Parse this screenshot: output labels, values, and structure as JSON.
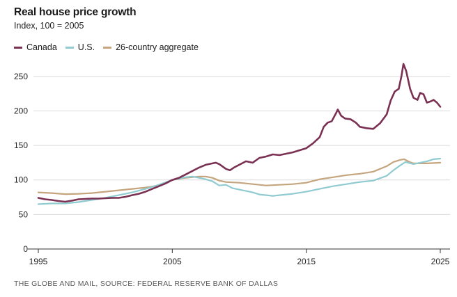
{
  "chart_data": {
    "type": "line",
    "title": "Real house price growth",
    "subtitle": "Index, 100 = 2005",
    "xlabel": "",
    "ylabel": "",
    "xlim": [
      1995,
      2025
    ],
    "ylim": [
      0,
      275
    ],
    "x_ticks": [
      1995,
      2005,
      2015,
      2025
    ],
    "y_ticks": [
      0,
      50,
      100,
      150,
      200,
      250
    ],
    "grid": "horizontal",
    "legend_position": "top-left",
    "series": [
      {
        "name": "Canada",
        "color": "#7a3052",
        "points": [
          [
            1995.0,
            74
          ],
          [
            1995.5,
            72
          ],
          [
            1996.0,
            71
          ],
          [
            1996.5,
            69.5
          ],
          [
            1997.0,
            68.5
          ],
          [
            1997.5,
            70
          ],
          [
            1998.0,
            72
          ],
          [
            1998.5,
            72.5
          ],
          [
            1999.0,
            73
          ],
          [
            1999.5,
            73
          ],
          [
            2000.0,
            73.5
          ],
          [
            2000.5,
            74
          ],
          [
            2001.0,
            74
          ],
          [
            2001.5,
            75.5
          ],
          [
            2002.0,
            78
          ],
          [
            2002.5,
            80
          ],
          [
            2003.0,
            83
          ],
          [
            2003.5,
            87
          ],
          [
            2004.0,
            91
          ],
          [
            2004.5,
            95
          ],
          [
            2005.0,
            100
          ],
          [
            2005.5,
            103
          ],
          [
            2006.0,
            108
          ],
          [
            2006.5,
            113
          ],
          [
            2007.0,
            118
          ],
          [
            2007.5,
            122
          ],
          [
            2008.0,
            124
          ],
          [
            2008.25,
            125
          ],
          [
            2008.5,
            123
          ],
          [
            2009.0,
            116
          ],
          [
            2009.3,
            114
          ],
          [
            2009.6,
            118
          ],
          [
            2010.0,
            122
          ],
          [
            2010.5,
            127
          ],
          [
            2011.0,
            125
          ],
          [
            2011.5,
            132
          ],
          [
            2012.0,
            134
          ],
          [
            2012.5,
            137
          ],
          [
            2013.0,
            136
          ],
          [
            2013.5,
            138
          ],
          [
            2014.0,
            140
          ],
          [
            2014.5,
            143
          ],
          [
            2015.0,
            146
          ],
          [
            2015.5,
            153
          ],
          [
            2016.0,
            162
          ],
          [
            2016.3,
            177
          ],
          [
            2016.6,
            183
          ],
          [
            2016.9,
            185
          ],
          [
            2017.2,
            196
          ],
          [
            2017.35,
            202
          ],
          [
            2017.6,
            193
          ],
          [
            2017.9,
            189
          ],
          [
            2018.3,
            188
          ],
          [
            2018.7,
            183
          ],
          [
            2019.0,
            177
          ],
          [
            2019.5,
            175
          ],
          [
            2020.0,
            174
          ],
          [
            2020.5,
            182
          ],
          [
            2021.0,
            195
          ],
          [
            2021.3,
            215
          ],
          [
            2021.6,
            228
          ],
          [
            2021.9,
            232
          ],
          [
            2022.1,
            250
          ],
          [
            2022.25,
            268
          ],
          [
            2022.45,
            258
          ],
          [
            2022.75,
            232
          ],
          [
            2023.0,
            219
          ],
          [
            2023.3,
            216
          ],
          [
            2023.5,
            226
          ],
          [
            2023.75,
            224
          ],
          [
            2024.0,
            212
          ],
          [
            2024.3,
            214
          ],
          [
            2024.5,
            216
          ],
          [
            2024.75,
            212
          ],
          [
            2025.0,
            206
          ]
        ]
      },
      {
        "name": "U.S.",
        "color": "#8fcbd0",
        "points": [
          [
            1995.0,
            65
          ],
          [
            1996.0,
            66
          ],
          [
            1997.0,
            66
          ],
          [
            1998.0,
            68
          ],
          [
            1999.0,
            71
          ],
          [
            2000.0,
            74
          ],
          [
            2001.0,
            78
          ],
          [
            2002.0,
            82
          ],
          [
            2003.0,
            87
          ],
          [
            2004.0,
            93
          ],
          [
            2005.0,
            100
          ],
          [
            2006.0,
            104
          ],
          [
            2006.5,
            105
          ],
          [
            2007.0,
            103
          ],
          [
            2007.5,
            101
          ],
          [
            2008.0,
            98
          ],
          [
            2008.5,
            92
          ],
          [
            2009.0,
            93
          ],
          [
            2009.5,
            88
          ],
          [
            2010.0,
            86
          ],
          [
            2010.5,
            84
          ],
          [
            2011.0,
            82
          ],
          [
            2011.5,
            79
          ],
          [
            2012.0,
            78
          ],
          [
            2012.5,
            77
          ],
          [
            2013.0,
            78
          ],
          [
            2014.0,
            80
          ],
          [
            2015.0,
            83
          ],
          [
            2016.0,
            87
          ],
          [
            2017.0,
            91
          ],
          [
            2018.0,
            94
          ],
          [
            2019.0,
            97
          ],
          [
            2020.0,
            99
          ],
          [
            2021.0,
            106
          ],
          [
            2021.5,
            114
          ],
          [
            2022.0,
            121
          ],
          [
            2022.4,
            126
          ],
          [
            2023.0,
            123
          ],
          [
            2024.0,
            127
          ],
          [
            2024.5,
            130
          ],
          [
            2025.0,
            131
          ]
        ]
      },
      {
        "name": "26-country aggregate",
        "color": "#c4a57e",
        "points": [
          [
            1995.0,
            82
          ],
          [
            1996.0,
            81
          ],
          [
            1997.0,
            79.5
          ],
          [
            1998.0,
            80
          ],
          [
            1999.0,
            81
          ],
          [
            2000.0,
            83
          ],
          [
            2001.0,
            85
          ],
          [
            2002.0,
            87
          ],
          [
            2003.0,
            89
          ],
          [
            2004.0,
            92
          ],
          [
            2005.0,
            100
          ],
          [
            2006.0,
            103
          ],
          [
            2007.0,
            105
          ],
          [
            2007.5,
            105
          ],
          [
            2008.0,
            103
          ],
          [
            2008.5,
            99
          ],
          [
            2009.0,
            97
          ],
          [
            2010.0,
            96
          ],
          [
            2011.0,
            94
          ],
          [
            2012.0,
            92
          ],
          [
            2013.0,
            93
          ],
          [
            2014.0,
            94
          ],
          [
            2015.0,
            96
          ],
          [
            2016.0,
            101
          ],
          [
            2017.0,
            104
          ],
          [
            2018.0,
            107
          ],
          [
            2019.0,
            109
          ],
          [
            2020.0,
            112
          ],
          [
            2021.0,
            120
          ],
          [
            2021.5,
            126
          ],
          [
            2022.0,
            129
          ],
          [
            2022.3,
            130
          ],
          [
            2022.7,
            126
          ],
          [
            2023.0,
            124
          ],
          [
            2024.0,
            124
          ],
          [
            2025.0,
            125
          ]
        ]
      }
    ]
  },
  "source": "THE GLOBE AND MAIL, SOURCE: FEDERAL RESERVE BANK OF DALLAS"
}
